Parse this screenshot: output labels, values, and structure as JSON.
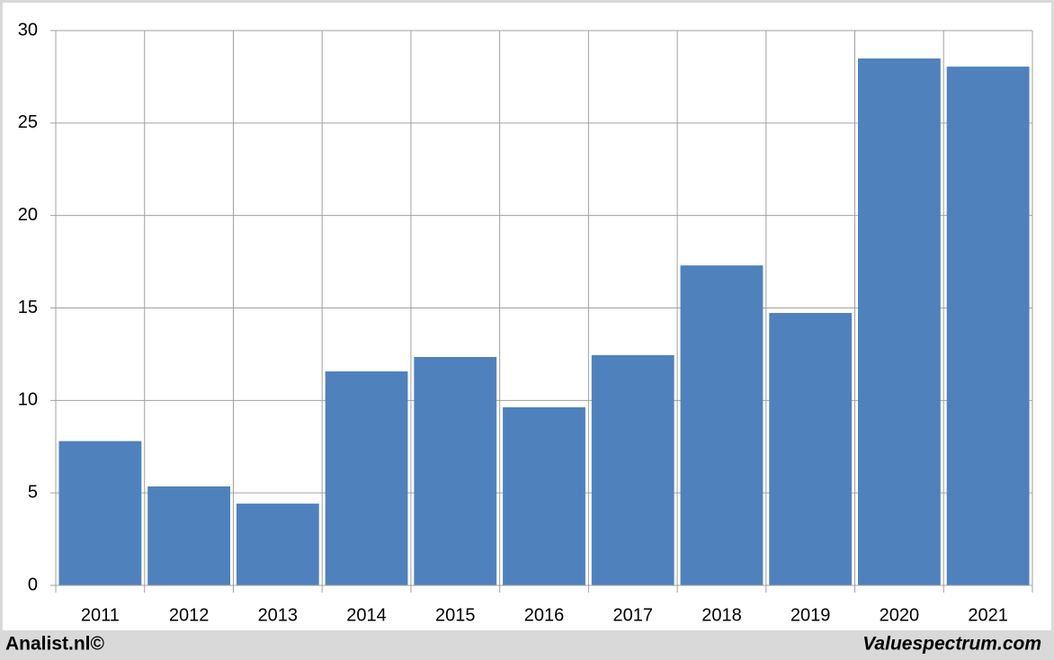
{
  "chart_data": {
    "type": "bar",
    "categories": [
      "2011",
      "2012",
      "2013",
      "2014",
      "2015",
      "2016",
      "2017",
      "2018",
      "2019",
      "2020",
      "2021"
    ],
    "values": [
      7.8,
      5.35,
      4.42,
      11.57,
      12.35,
      9.63,
      12.45,
      17.3,
      14.73,
      28.49,
      28.05
    ],
    "color": "#4f81bd",
    "ylim": [
      0,
      30
    ],
    "yticks": [
      0,
      5,
      10,
      15,
      20,
      25,
      30
    ],
    "grid": true
  },
  "footer": {
    "left": "Analist.nl©",
    "right": "Valuespectrum.com"
  }
}
